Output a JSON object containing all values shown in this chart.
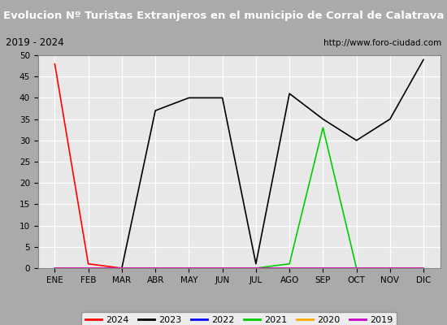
{
  "title": "Evolucion Nº Turistas Extranjeros en el municipio de Corral de Calatrava",
  "subtitle_left": "2019 - 2024",
  "subtitle_right": "http://www.foro-ciudad.com",
  "months": [
    "ENE",
    "FEB",
    "MAR",
    "ABR",
    "MAY",
    "JUN",
    "JUL",
    "AGO",
    "SEP",
    "OCT",
    "NOV",
    "DIC"
  ],
  "series": {
    "2024": {
      "color": "#ff0000",
      "data": [
        48,
        1,
        0,
        0,
        null,
        null,
        null,
        null,
        null,
        null,
        null,
        null
      ]
    },
    "2023": {
      "color": "#000000",
      "data": [
        0,
        0,
        0,
        37,
        40,
        40,
        1,
        41,
        35,
        30,
        35,
        49
      ]
    },
    "2022": {
      "color": "#0000ff",
      "data": [
        0,
        0,
        0,
        0,
        0,
        0,
        0,
        0,
        0,
        0,
        0,
        0
      ]
    },
    "2021": {
      "color": "#00cc00",
      "data": [
        0,
        0,
        0,
        0,
        0,
        0,
        0,
        1,
        33,
        0,
        0,
        0
      ]
    },
    "2020": {
      "color": "#ffaa00",
      "data": [
        0,
        0,
        0,
        0,
        0,
        0,
        0,
        0,
        0,
        0,
        0,
        0
      ]
    },
    "2019": {
      "color": "#cc00cc",
      "data": [
        0,
        0,
        0,
        0,
        0,
        0,
        0,
        0,
        0,
        0,
        0,
        0
      ]
    }
  },
  "ylim": [
    0,
    50
  ],
  "yticks": [
    0,
    5,
    10,
    15,
    20,
    25,
    30,
    35,
    40,
    45,
    50
  ],
  "title_bg_color": "#4d9fd6",
  "title_text_color": "#ffffff",
  "subtitle_bg_color": "#e8e8e8",
  "plot_bg_color": "#e8e8e8",
  "grid_color": "#ffffff",
  "legend_order": [
    "2024",
    "2023",
    "2022",
    "2021",
    "2020",
    "2019"
  ],
  "fig_width": 5.5,
  "fig_height": 4.0,
  "fig_dpi": 100
}
